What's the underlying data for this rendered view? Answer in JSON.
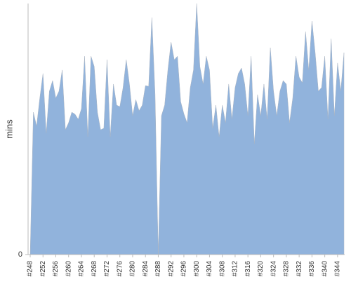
{
  "chart_data": {
    "type": "area",
    "y_label": "mins",
    "color": "#91b3dc",
    "categories": [
      "#248",
      null,
      null,
      null,
      "#252",
      null,
      null,
      null,
      "#256",
      null,
      null,
      null,
      "#260",
      null,
      null,
      null,
      "#264",
      null,
      null,
      null,
      "#268",
      null,
      null,
      null,
      "#272",
      null,
      null,
      null,
      "#276",
      null,
      null,
      null,
      "#280",
      null,
      null,
      null,
      "#284",
      null,
      null,
      null,
      "#288",
      null,
      null,
      null,
      "#292",
      null,
      null,
      null,
      "#296",
      null,
      null,
      null,
      "#300",
      null,
      null,
      null,
      "#304",
      null,
      null,
      null,
      "#308",
      null,
      null,
      null,
      "#312",
      null,
      null,
      null,
      "#316",
      null,
      null,
      null,
      "#320",
      null,
      null,
      null,
      "#324",
      null,
      null,
      null,
      "#328",
      null,
      null,
      null,
      "#332",
      null,
      null,
      null,
      "#336",
      null,
      null,
      null,
      "#340",
      null,
      null,
      null,
      "#344",
      null,
      null
    ],
    "values": [
      0,
      56.7,
      51.1,
      62.3,
      72.1,
      48.3,
      65.1,
      69.3,
      62.3,
      65.1,
      73.5,
      49.7,
      52.5,
      56.7,
      55.9,
      53.9,
      58.1,
      79.0,
      46.9,
      79.0,
      74.9,
      56.7,
      49.7,
      50.3,
      77.6,
      46.9,
      67.9,
      59.5,
      58.9,
      66.5,
      77.6,
      67.9,
      55.3,
      61.7,
      57.3,
      59.5,
      67.3,
      67.0,
      94.4,
      63.7,
      0,
      55.3,
      59.5,
      73.5,
      84.6,
      77.6,
      79.0,
      60.9,
      56.1,
      52.5,
      66.5,
      73.5,
      100,
      74.9,
      67.9,
      79.0,
      73.5,
      50.3,
      59.5,
      46.9,
      59.5,
      52.5,
      67.9,
      53.9,
      66.5,
      72.1,
      74.3,
      67.9,
      55.3,
      79.0,
      44.1,
      63.7,
      55.3,
      67.9,
      53.9,
      82.4,
      65.1,
      55.3,
      65.1,
      69.3,
      67.9,
      52.5,
      62.3,
      79.0,
      70.7,
      68.4,
      88.8,
      73.5,
      93.0,
      80.4,
      65.1,
      66.5,
      79.0,
      53.9,
      86.0,
      55.3,
      76.3,
      65.1,
      80.4
    ],
    "ylim": [
      0,
      100
    ],
    "yticks": [
      0
    ]
  }
}
